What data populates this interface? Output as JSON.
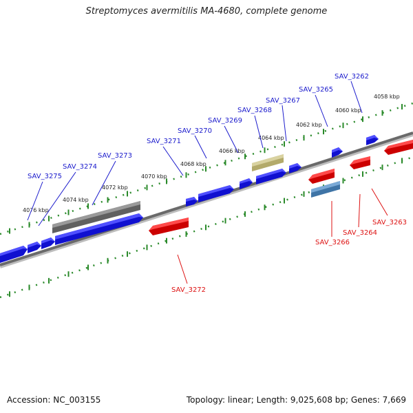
{
  "title": "Streptomyces avermitilis MA-4680, complete genome",
  "footer": {
    "accession": "Accession: NC_003155",
    "summary": "Topology: linear; Length: 9,025,608 bp; Genes: 7,669"
  },
  "colors": {
    "background": "#ffffff",
    "backbone": "#7a7a7a",
    "ruler_ticks": "#2a8a2a",
    "forward_gene": "#1a1aee",
    "reverse_gene": "#ee1a1a",
    "forward_label": "#1a1acc",
    "reverse_label": "#dd1111",
    "pseudogene_gray": "#6e6e6e",
    "feature_khaki": "#c2b97a",
    "feature_steelblue": "#4f86b8"
  },
  "ruler": {
    "labels": [
      "4076 kbp",
      "4074 kbp",
      "4072 kbp",
      "4070 kbp",
      "4068 kbp",
      "4066 kbp",
      "4064 kbp",
      "4062 kbp",
      "4060 kbp",
      "4058 kbp"
    ]
  },
  "genes_forward": [
    "SAV_3275",
    "SAV_3274",
    "SAV_3273",
    "SAV_3271",
    "SAV_3270",
    "SAV_3269",
    "SAV_3268",
    "SAV_3267",
    "SAV_3265",
    "SAV_3262"
  ],
  "genes_reverse": [
    "SAV_3272",
    "SAV_3266",
    "SAV_3264",
    "SAV_3263"
  ]
}
